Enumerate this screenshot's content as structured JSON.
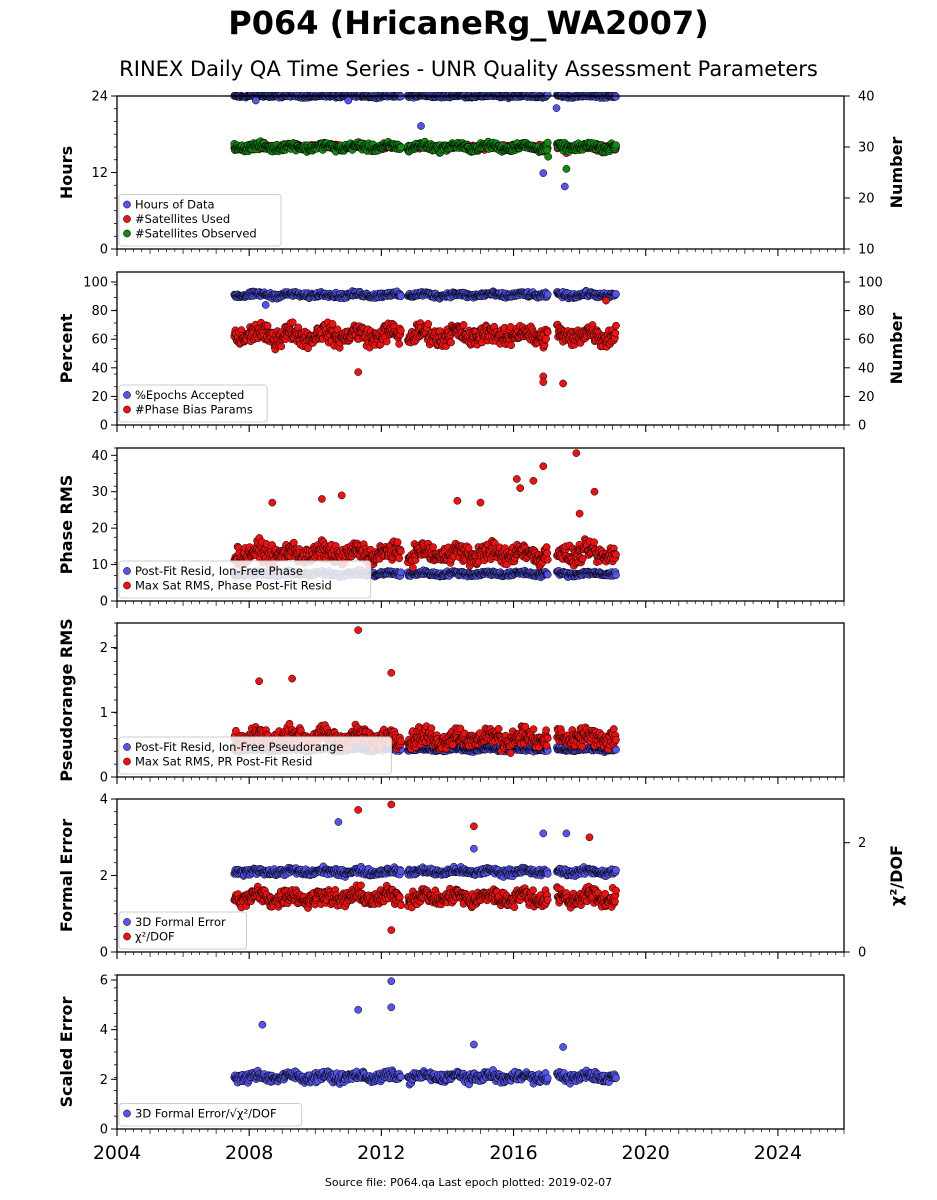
{
  "header": {
    "title": "P064 (HricaneRg_WA2007)",
    "subtitle": "RINEX Daily QA Time Series - UNR Quality Assessment Parameters"
  },
  "footer": {
    "source_note": "Source file: P064.qa Last epoch plotted: 2019-02-07"
  },
  "x_axis": {
    "range": [
      2004,
      2026
    ],
    "major_ticks": [
      2004,
      2008,
      2012,
      2016,
      2020,
      2024
    ],
    "tick_labels": [
      "2004",
      "2008",
      "2012",
      "2016",
      "2020",
      "2024"
    ]
  },
  "chart_data": [
    {
      "type": "scatter",
      "panel": "hours-satellites",
      "ylabel": "Hours",
      "ylim": [
        0,
        24
      ],
      "yticks": [
        0,
        12,
        24
      ],
      "y2label": "Number",
      "y2lim": [
        10,
        40
      ],
      "y2ticks": [
        10,
        20,
        30,
        40
      ],
      "legend_position": "lower-left",
      "series": [
        {
          "name": "Hours of Data",
          "color": "#5555ee",
          "axis": "left",
          "base": 24,
          "noise": 0.3,
          "outliers": [
            [
              2008.2,
              23.3
            ],
            [
              2011.0,
              23.3
            ],
            [
              2013.2,
              19.3
            ],
            [
              2016.9,
              11.9
            ],
            [
              2017.3,
              22.1
            ],
            [
              2017.55,
              9.8
            ]
          ]
        },
        {
          "name": "#Satellites Used",
          "color": "#ee1111",
          "axis": "right",
          "base": 30,
          "noise": 0.8,
          "outliers": [
            [
              2009.7,
              30.1
            ],
            [
              2016.9,
              29.1
            ],
            [
              2017.6,
              28.8
            ],
            [
              2018.5,
              30.3
            ]
          ]
        },
        {
          "name": "#Satellites Observed",
          "color": "#118811",
          "axis": "right",
          "base": 30,
          "noise": 1.0,
          "outliers": [
            [
              2017.05,
              28.1
            ],
            [
              2017.6,
              25.7
            ]
          ]
        }
      ]
    },
    {
      "type": "scatter",
      "panel": "percent",
      "ylabel": "Percent",
      "ylim": [
        0,
        107
      ],
      "yticks": [
        0,
        20,
        40,
        60,
        80,
        100
      ],
      "y2label": "Number",
      "y2lim": [
        0,
        107
      ],
      "y2ticks": [
        0,
        20,
        40,
        60,
        80,
        100
      ],
      "legend_position": "lower-left",
      "series": [
        {
          "name": "%Epochs Accepted",
          "color": "#5555ee",
          "axis": "left",
          "base": 91,
          "noise": 2.5,
          "outliers": [
            [
              2008.5,
              84
            ]
          ]
        },
        {
          "name": "#Phase Bias Params",
          "color": "#ee1111",
          "axis": "right",
          "base": 63,
          "noise": 9,
          "outliers": [
            [
              2011.3,
              37
            ],
            [
              2016.9,
              34
            ],
            [
              2016.9,
              30
            ],
            [
              2017.5,
              29
            ],
            [
              2018.8,
              87
            ]
          ]
        }
      ]
    },
    {
      "type": "scatter",
      "panel": "phase-rms",
      "ylabel": "Phase RMS",
      "ylim": [
        0,
        42
      ],
      "yticks": [
        0,
        10,
        20,
        30,
        40
      ],
      "legend_position": "lower-left",
      "series": [
        {
          "name": "Post-Fit Resid, Ion-Free Phase",
          "color": "#5555ee",
          "axis": "left",
          "base": 7.5,
          "noise": 0.9,
          "outliers": []
        },
        {
          "name": "Max Sat RMS, Phase Post-Fit Resid",
          "color": "#ee1111",
          "axis": "left",
          "base": 13,
          "noise": 3.5,
          "outliers": [
            [
              2008.7,
              27
            ],
            [
              2010.2,
              28
            ],
            [
              2010.8,
              29
            ],
            [
              2014.3,
              27.5
            ],
            [
              2015.0,
              27
            ],
            [
              2016.1,
              33.5
            ],
            [
              2016.2,
              31
            ],
            [
              2016.6,
              33
            ],
            [
              2016.9,
              37
            ],
            [
              2017.9,
              40.6
            ],
            [
              2018.45,
              30
            ],
            [
              2018.0,
              24
            ]
          ]
        }
      ]
    },
    {
      "type": "scatter",
      "panel": "pseudorange-rms",
      "ylabel": "Pseudorange RMS",
      "ylim": [
        0,
        2.38
      ],
      "yticks": [
        0,
        1,
        2
      ],
      "legend_position": "lower-left",
      "series": [
        {
          "name": "Post-Fit Resid, Ion-Free Pseudorange",
          "color": "#5555ee",
          "axis": "left",
          "base": 0.43,
          "noise": 0.04,
          "outliers": []
        },
        {
          "name": "Max Sat RMS, PR Post-Fit Resid",
          "color": "#ee1111",
          "axis": "left",
          "base": 0.6,
          "noise": 0.2,
          "outliers": [
            [
              2011.3,
              2.27
            ],
            [
              2012.3,
              1.61
            ],
            [
              2009.3,
              1.52
            ],
            [
              2008.3,
              1.48
            ]
          ]
        }
      ]
    },
    {
      "type": "scatter",
      "panel": "formal-error",
      "ylabel": "Formal Error",
      "ylim": [
        0,
        4
      ],
      "yticks": [
        0,
        2,
        4
      ],
      "y2label": "χ²/DOF",
      "y2lim": [
        0,
        2.8
      ],
      "y2ticks": [
        0,
        2
      ],
      "legend_position": "lower-left",
      "series": [
        {
          "name": "3D Formal Error",
          "color": "#5555ee",
          "axis": "left",
          "base": 2.1,
          "noise": 0.12,
          "outliers": [
            [
              2010.7,
              3.4
            ],
            [
              2016.9,
              3.1
            ],
            [
              2017.6,
              3.1
            ],
            [
              2014.8,
              2.7
            ]
          ]
        },
        {
          "name": "χ²/DOF",
          "color": "#ee1111",
          "axis": "right",
          "base": 1.0,
          "noise": 0.2,
          "outliers": [
            [
              2011.3,
              2.6
            ],
            [
              2012.3,
              2.7
            ],
            [
              2014.8,
              2.3
            ],
            [
              2018.3,
              2.1
            ],
            [
              2012.3,
              0.4
            ]
          ]
        }
      ]
    },
    {
      "type": "scatter",
      "panel": "scaled-error",
      "ylabel": "Scaled Error",
      "ylim": [
        0,
        6.2
      ],
      "yticks": [
        0,
        2,
        4,
        6
      ],
      "legend_position": "lower-left",
      "series": [
        {
          "name": "3D Formal Error/√χ²/DOF",
          "color": "#5555ee",
          "axis": "left",
          "base": 2.1,
          "noise": 0.25,
          "outliers": [
            [
              2012.3,
              5.95
            ],
            [
              2012.3,
              4.9
            ],
            [
              2011.3,
              4.8
            ],
            [
              2008.4,
              4.2
            ],
            [
              2017.5,
              3.3
            ],
            [
              2014.8,
              3.4
            ]
          ]
        }
      ]
    }
  ],
  "data_span": {
    "start": 2007.55,
    "end": 2019.1,
    "gaps": [
      [
        2012.6,
        2012.8
      ],
      [
        2017.05,
        2017.3
      ]
    ]
  }
}
